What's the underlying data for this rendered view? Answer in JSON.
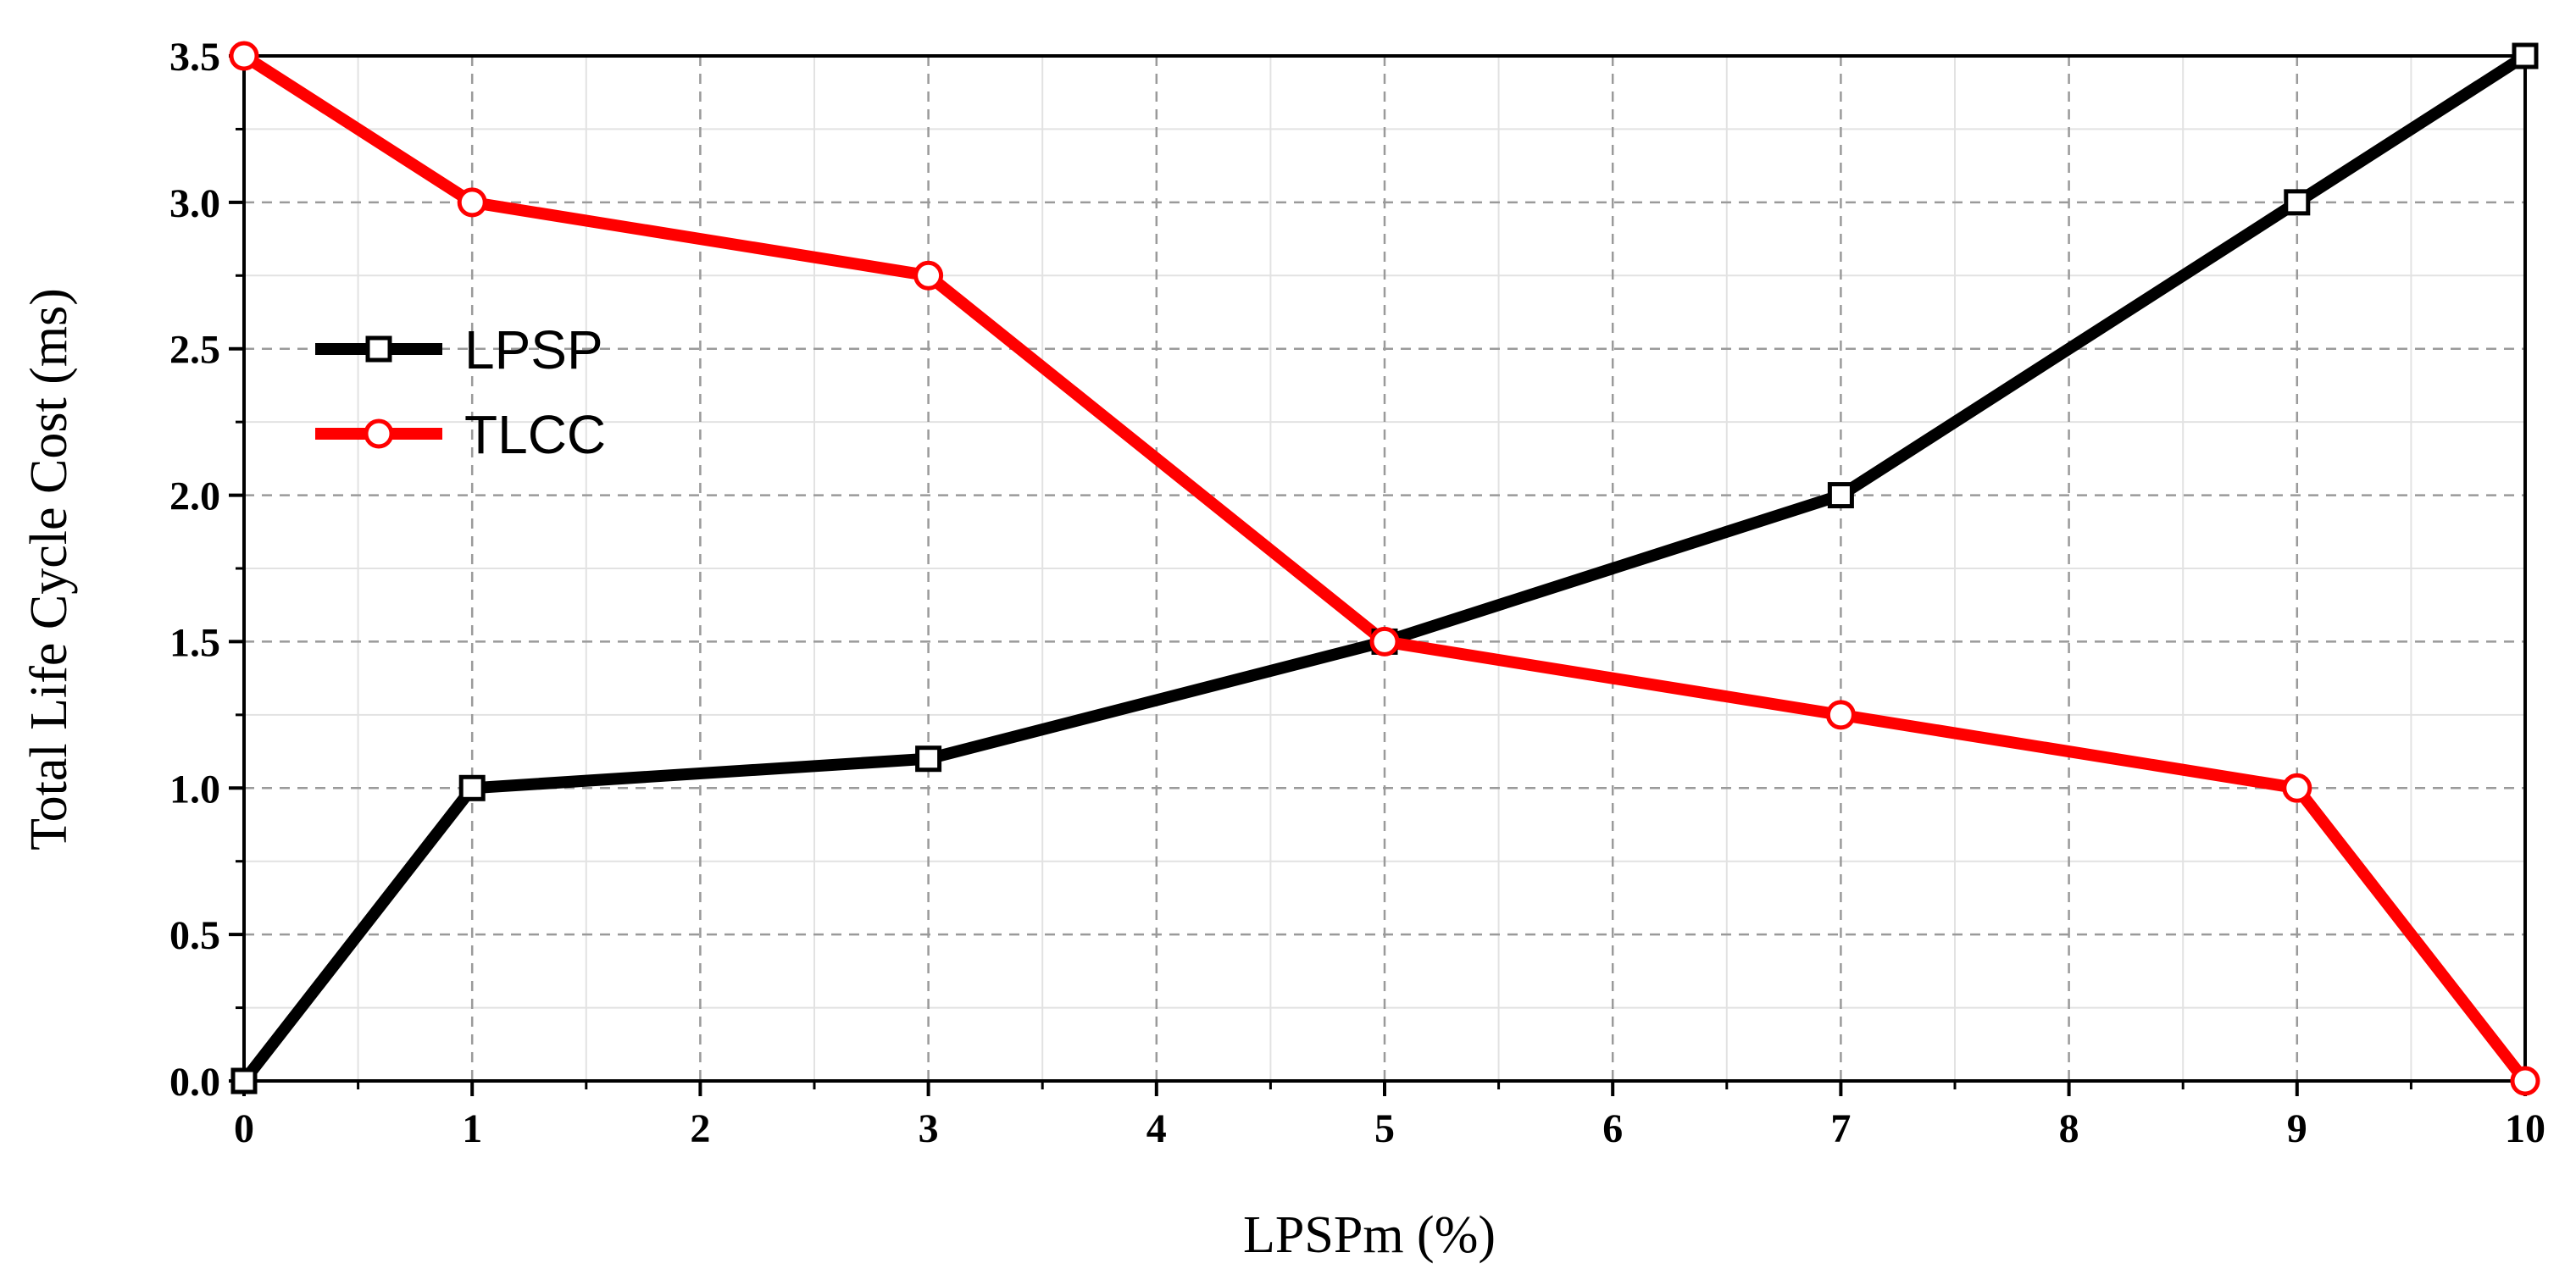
{
  "chart_data": {
    "type": "line",
    "title": "",
    "xlabel": "LPSPm (%)",
    "ylabel": "Total Life Cycle Cost (ms)",
    "xlim": [
      0,
      10
    ],
    "ylim": [
      0,
      3.5
    ],
    "x_ticks": [
      "0",
      "1",
      "2",
      "3",
      "4",
      "5",
      "6",
      "7",
      "8",
      "9",
      "10"
    ],
    "y_ticks": [
      "0.0",
      "0.5",
      "1.0",
      "1.5",
      "2.0",
      "2.5",
      "3.0",
      "3.5"
    ],
    "grid": true,
    "legend_position": "upper-left",
    "series": [
      {
        "name": "LPSP",
        "color": "#000000",
        "marker": "square",
        "x": [
          0,
          1,
          3,
          5,
          7,
          9,
          10
        ],
        "y": [
          0.0,
          1.0,
          1.1,
          1.5,
          2.0,
          3.0,
          3.5
        ]
      },
      {
        "name": "TLCC",
        "color": "#ff0000",
        "marker": "circle",
        "x": [
          0,
          1,
          3,
          5,
          7,
          9,
          10
        ],
        "y": [
          3.5,
          3.0,
          2.75,
          1.5,
          1.25,
          1.0,
          0.0
        ]
      }
    ]
  }
}
